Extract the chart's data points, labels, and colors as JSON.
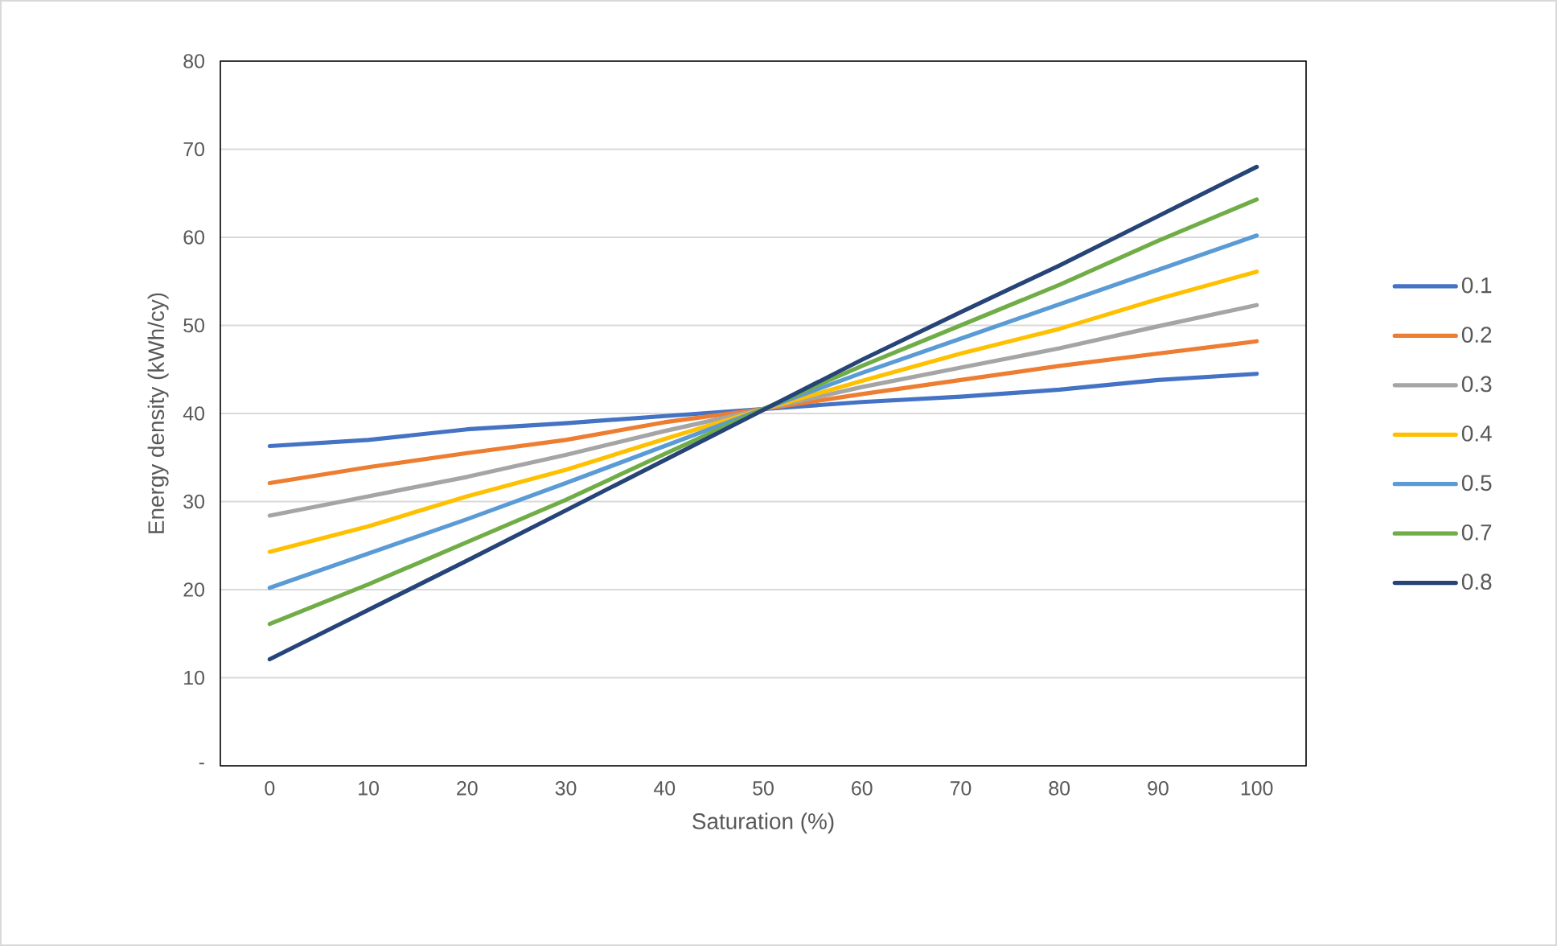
{
  "chart_data": {
    "type": "line",
    "xlabel": "Saturation (%)",
    "ylabel": "Energy density (kWh/cy)",
    "categories": [
      "0",
      "10",
      "20",
      "30",
      "40",
      "50",
      "60",
      "70",
      "80",
      "90",
      "100"
    ],
    "ylim": [
      0,
      80
    ],
    "yticks": [
      {
        "value": 0,
        "label": "-"
      },
      10,
      20,
      30,
      40,
      50,
      60,
      70,
      80
    ],
    "grid": "y",
    "legend": "right",
    "marker": "none",
    "line_style": "solid",
    "series": [
      {
        "name": "0.1",
        "color": "#4472c4",
        "values": [
          36.3,
          37.0,
          38.2,
          38.9,
          39.7,
          40.5,
          41.3,
          41.9,
          42.7,
          43.8,
          44.5
        ]
      },
      {
        "name": "0.2",
        "color": "#ed7d31",
        "values": [
          32.1,
          33.9,
          35.5,
          37.0,
          39.0,
          40.5,
          42.2,
          43.8,
          45.4,
          46.8,
          48.2
        ]
      },
      {
        "name": "0.3",
        "color": "#a5a5a5",
        "values": [
          28.4,
          30.6,
          32.8,
          35.3,
          38.0,
          40.5,
          43.0,
          45.2,
          47.4,
          49.9,
          52.3
        ]
      },
      {
        "name": "0.4",
        "color": "#ffc000",
        "values": [
          24.3,
          27.2,
          30.6,
          33.6,
          37.1,
          40.5,
          43.7,
          46.8,
          49.6,
          53.0,
          56.1
        ]
      },
      {
        "name": "0.5",
        "color": "#5b9bd5",
        "values": [
          20.2,
          24.1,
          28.0,
          32.1,
          36.3,
          40.5,
          44.6,
          48.5,
          52.4,
          56.3,
          60.2
        ]
      },
      {
        "name": "0.7",
        "color": "#70ad47",
        "values": [
          16.1,
          20.6,
          25.4,
          30.2,
          35.4,
          40.5,
          45.4,
          50.0,
          54.6,
          59.6,
          64.3
        ]
      },
      {
        "name": "0.8",
        "color": "#264478",
        "values": [
          12.1,
          17.7,
          23.3,
          29.0,
          34.7,
          40.4,
          46.1,
          51.5,
          56.8,
          62.4,
          68.0
        ]
      }
    ]
  }
}
